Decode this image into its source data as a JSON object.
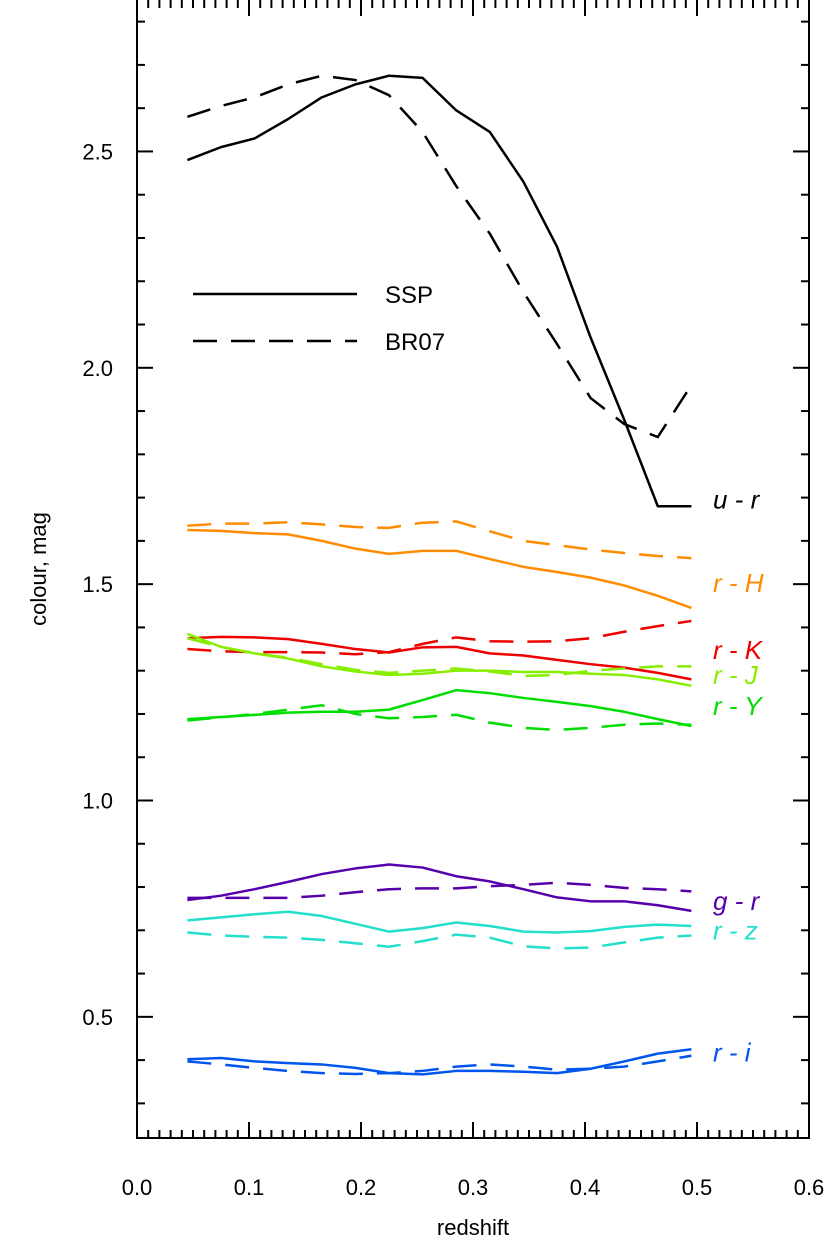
{
  "chart_data": {
    "type": "line",
    "xlabel": "redshift",
    "ylabel": "colour, mag",
    "xlim": [
      0.0,
      0.6
    ],
    "ylim": [
      0.22,
      2.85
    ],
    "x_ticks": [
      "0.0",
      "0.1",
      "0.2",
      "0.3",
      "0.4",
      "0.5",
      "0.6"
    ],
    "y_ticks": [
      "0.5",
      "1.0",
      "1.5",
      "2.0",
      "2.5"
    ],
    "grid": false,
    "legend": {
      "position": "top-left",
      "entries": [
        {
          "label": "SSP",
          "style": "solid"
        },
        {
          "label": "BR07",
          "style": "dashed"
        }
      ]
    },
    "x": [
      0.045,
      0.075,
      0.105,
      0.135,
      0.165,
      0.195,
      0.225,
      0.255,
      0.285,
      0.315,
      0.345,
      0.375,
      0.405,
      0.435,
      0.465,
      0.495
    ],
    "series": [
      {
        "name": "u - r",
        "color": "#000000",
        "ssp": [
          2.48,
          2.51,
          2.53,
          2.575,
          2.625,
          2.655,
          2.675,
          2.67,
          2.595,
          2.545,
          2.43,
          2.28,
          2.07,
          1.88,
          1.68,
          1.68
        ],
        "br07": [
          2.58,
          2.605,
          2.625,
          2.655,
          2.675,
          2.665,
          2.63,
          2.545,
          2.42,
          2.31,
          2.175,
          2.055,
          1.93,
          1.87,
          1.84,
          1.96
        ]
      },
      {
        "name": "r - H",
        "color": "#ff8c00",
        "ssp": [
          1.625,
          1.623,
          1.618,
          1.615,
          1.6,
          1.582,
          1.57,
          1.577,
          1.577,
          1.558,
          1.54,
          1.528,
          1.515,
          1.497,
          1.473,
          1.445
        ],
        "br07": [
          1.635,
          1.64,
          1.64,
          1.643,
          1.638,
          1.632,
          1.63,
          1.642,
          1.645,
          1.622,
          1.6,
          1.59,
          1.58,
          1.572,
          1.565,
          1.56
        ]
      },
      {
        "name": "r - K",
        "color": "#ee0000",
        "ssp": [
          1.375,
          1.378,
          1.377,
          1.373,
          1.362,
          1.35,
          1.342,
          1.354,
          1.355,
          1.34,
          1.335,
          1.325,
          1.315,
          1.307,
          1.295,
          1.28
        ],
        "br07": [
          1.35,
          1.345,
          1.343,
          1.343,
          1.342,
          1.338,
          1.343,
          1.362,
          1.377,
          1.368,
          1.367,
          1.368,
          1.375,
          1.39,
          1.403,
          1.415
        ]
      },
      {
        "name": "r - J",
        "color": "#88ee00",
        "ssp": [
          1.385,
          1.355,
          1.34,
          1.328,
          1.31,
          1.298,
          1.29,
          1.293,
          1.3,
          1.3,
          1.297,
          1.297,
          1.293,
          1.29,
          1.28,
          1.265
        ],
        "br07": [
          1.375,
          1.355,
          1.34,
          1.33,
          1.315,
          1.302,
          1.295,
          1.3,
          1.305,
          1.298,
          1.288,
          1.29,
          1.3,
          1.305,
          1.31,
          1.31
        ]
      },
      {
        "name": "r - Y",
        "color": "#00dd00",
        "ssp": [
          1.188,
          1.193,
          1.198,
          1.203,
          1.205,
          1.205,
          1.21,
          1.232,
          1.255,
          1.248,
          1.237,
          1.228,
          1.218,
          1.205,
          1.188,
          1.172
        ],
        "br07": [
          1.185,
          1.192,
          1.2,
          1.21,
          1.22,
          1.2,
          1.19,
          1.193,
          1.198,
          1.18,
          1.168,
          1.163,
          1.168,
          1.175,
          1.178,
          1.175
        ]
      },
      {
        "name": "g - r",
        "color": "#5500aa",
        "ssp": [
          0.77,
          0.78,
          0.795,
          0.812,
          0.83,
          0.843,
          0.852,
          0.845,
          0.825,
          0.813,
          0.795,
          0.776,
          0.767,
          0.767,
          0.758,
          0.745
        ],
        "br07": [
          0.775,
          0.775,
          0.775,
          0.775,
          0.78,
          0.788,
          0.795,
          0.797,
          0.797,
          0.802,
          0.805,
          0.81,
          0.805,
          0.798,
          0.795,
          0.79
        ]
      },
      {
        "name": "r - z",
        "color": "#22e0cc",
        "ssp": [
          0.723,
          0.73,
          0.737,
          0.743,
          0.733,
          0.715,
          0.697,
          0.705,
          0.718,
          0.71,
          0.697,
          0.695,
          0.698,
          0.708,
          0.713,
          0.71
        ],
        "br07": [
          0.695,
          0.688,
          0.685,
          0.683,
          0.678,
          0.67,
          0.662,
          0.675,
          0.69,
          0.683,
          0.663,
          0.658,
          0.66,
          0.672,
          0.683,
          0.688
        ]
      },
      {
        "name": "r - i",
        "color": "#0055ee",
        "ssp": [
          0.402,
          0.405,
          0.397,
          0.393,
          0.39,
          0.382,
          0.37,
          0.367,
          0.375,
          0.375,
          0.373,
          0.37,
          0.38,
          0.397,
          0.415,
          0.425
        ],
        "br07": [
          0.397,
          0.39,
          0.382,
          0.375,
          0.37,
          0.368,
          0.37,
          0.375,
          0.385,
          0.39,
          0.385,
          0.378,
          0.38,
          0.385,
          0.397,
          0.41
        ]
      }
    ]
  }
}
